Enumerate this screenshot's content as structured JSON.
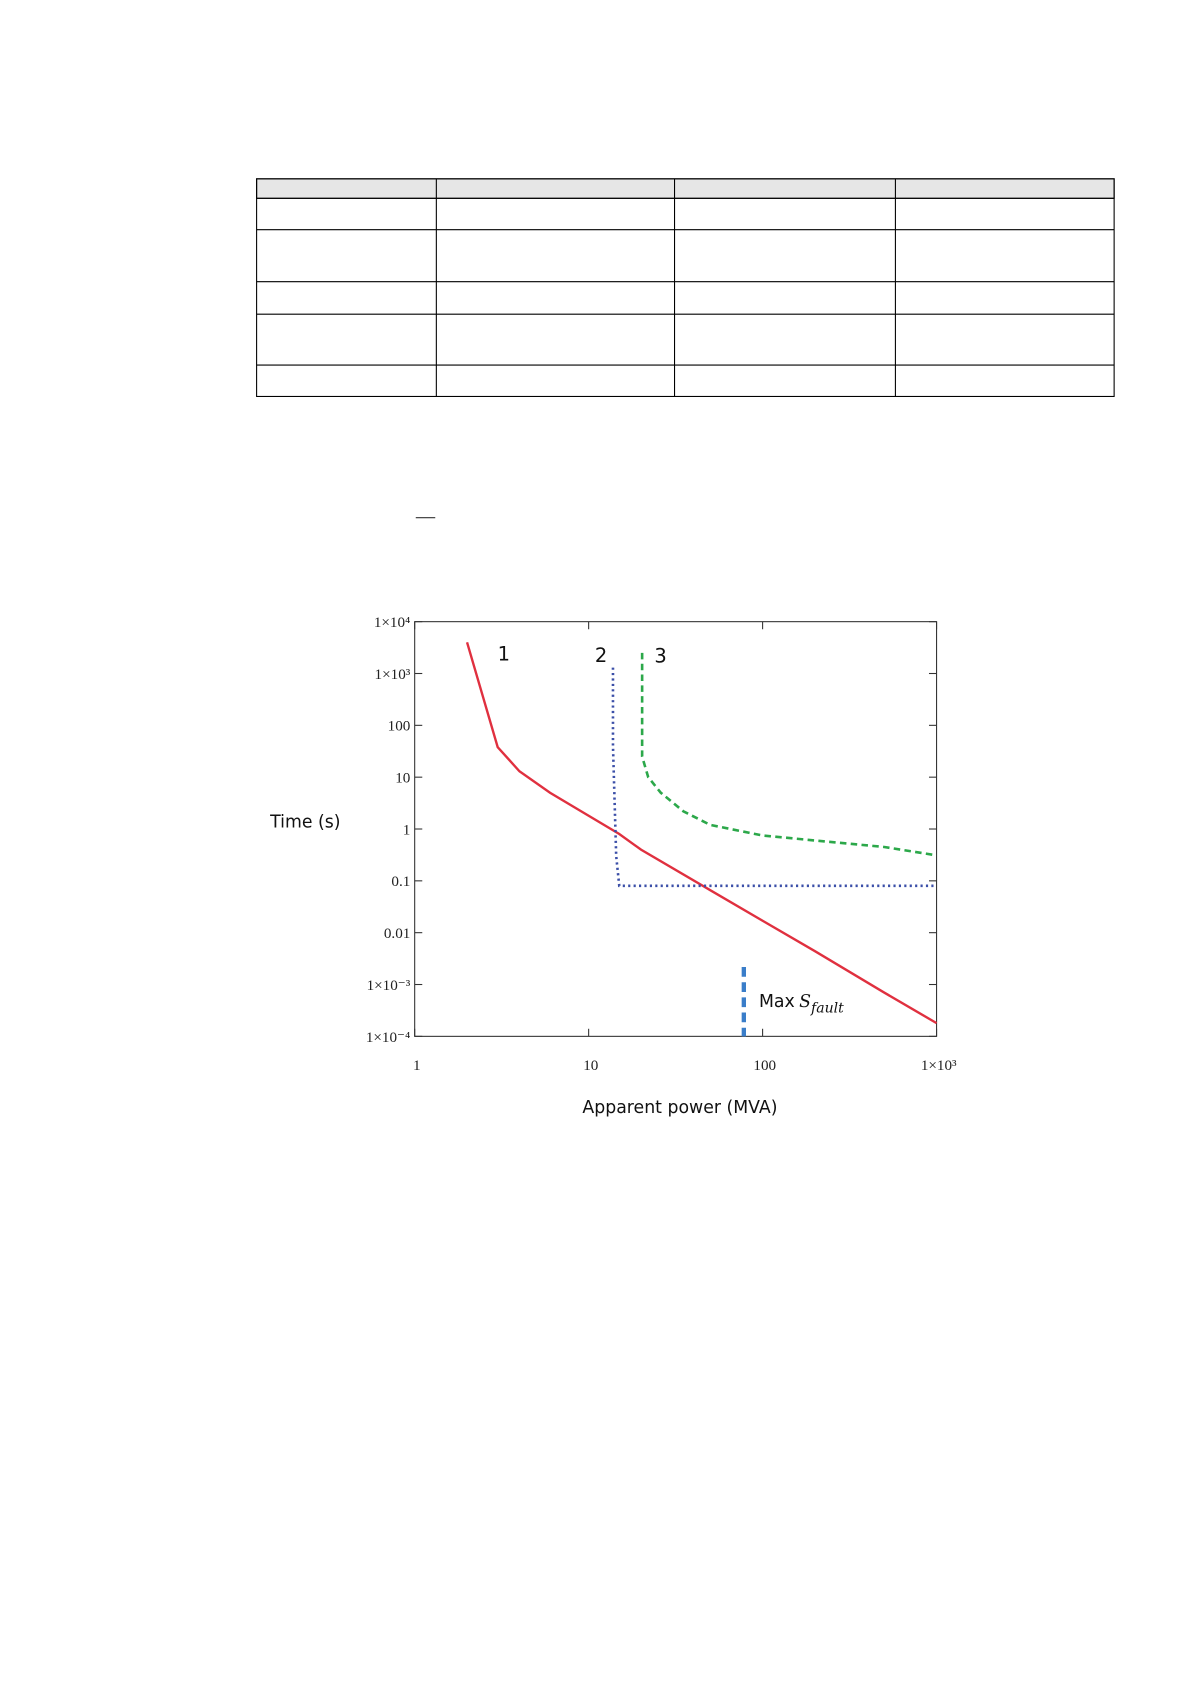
{
  "chart_data": {
    "type": "line",
    "x_label": "Apparent power (MVA)",
    "y_label": "Time (s)",
    "log_x": true,
    "log_y": true,
    "grid": false,
    "xlim": [
      1,
      1000
    ],
    "ylim": [
      0.0001,
      10000
    ],
    "xticks": [
      1,
      10,
      100,
      {
        "value": 1000,
        "label": "1×10³"
      }
    ],
    "yticks": [
      {
        "value": 0.0001,
        "label": "1×10⁻⁴"
      },
      {
        "value": 0.001,
        "label": "1×10⁻³"
      },
      0.01,
      0.1,
      1,
      10,
      100,
      {
        "value": 1000,
        "label": "1×10³"
      },
      {
        "value": 10000,
        "label": "1×10⁴"
      }
    ],
    "series": [
      {
        "name": "1",
        "color": "#e0303f",
        "style": "solid",
        "x": [
          2,
          3,
          4,
          6,
          10,
          15,
          20,
          50,
          100,
          200,
          500,
          1000
        ],
        "values": [
          4000,
          38,
          13,
          5,
          1.8,
          0.8,
          0.4,
          0.066,
          0.017,
          0.0044,
          0.0007,
          0.00018
        ]
      },
      {
        "name": "2",
        "color": "#3b4fa8",
        "style": "dotted",
        "x": [
          13.8,
          13.8,
          14.4,
          15,
          1000
        ],
        "values": [
          1300,
          40,
          0.3,
          0.08,
          0.08
        ]
      },
      {
        "name": "3",
        "color": "#2ca84a",
        "style": "dashed",
        "x": [
          20.3,
          20.3,
          22,
          26,
          35,
          50,
          100,
          200,
          500,
          1000
        ],
        "values": [
          2500,
          25,
          10,
          5,
          2.2,
          1.2,
          0.75,
          0.6,
          0.45,
          0.31
        ]
      }
    ],
    "annotation": {
      "x": 78,
      "color": "#3a7dc9",
      "text": "Max",
      "symbol": "S",
      "subscript": "fault"
    }
  }
}
